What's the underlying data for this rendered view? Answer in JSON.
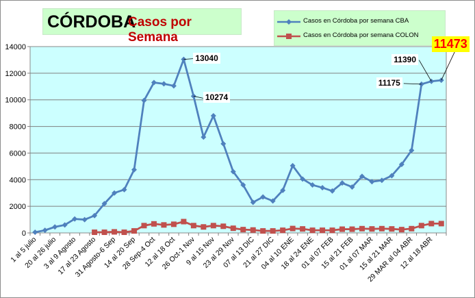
{
  "chart_data": {
    "type": "line",
    "title": "CÓRDOBA",
    "subtitle": "Casos por Semana",
    "ylim": [
      0,
      14000
    ],
    "yticks": [
      0,
      2000,
      4000,
      6000,
      8000,
      10000,
      12000,
      14000
    ],
    "categories": [
      "1 al 5 julio",
      "",
      "20 al 26 julio",
      "",
      "3 al 9 Agosto",
      "",
      "17 al 23 Agosto",
      "",
      "31 Agosto-6 Sep",
      "",
      "14 al 20 Sep",
      "",
      "28 Sep-4 Oct",
      "",
      "12 al 18 Oct",
      "",
      "26 Oct-1 Nov",
      "",
      "9 al 15 Nov",
      "",
      "23 al 29 Nov",
      "",
      "07 al 13 DIC",
      "",
      "21 al 27 DIC",
      "",
      "04 al 10 ENE",
      "",
      "18 al 24 ENE",
      "",
      "01 al 07 FEB",
      "",
      "15 al 21 FEB",
      "",
      "01 al 07 MAR",
      "",
      "15 al 21 MAR",
      "",
      "29 MAR al 04 ABR",
      "",
      "12 al 18 ABR",
      ""
    ],
    "series": [
      {
        "name": "Casos en Córdoba por semana  CBA",
        "color": "#4f81bd",
        "marker": "diamond",
        "values": [
          50,
          200,
          450,
          600,
          1050,
          1000,
          1300,
          2200,
          3000,
          3250,
          4750,
          9950,
          11300,
          11200,
          11050,
          13040,
          10274,
          7200,
          8800,
          6700,
          4600,
          3600,
          2300,
          2700,
          2400,
          3200,
          5050,
          4050,
          3600,
          3400,
          3150,
          3750,
          3450,
          4250,
          3850,
          3950,
          4300,
          5150,
          6200,
          11175,
          11390,
          11473
        ]
      },
      {
        "name": "Casos en Córdoba por semana  COLON",
        "color": "#c0504d",
        "marker": "square",
        "values": [
          null,
          null,
          null,
          null,
          null,
          null,
          50,
          50,
          80,
          50,
          150,
          550,
          680,
          600,
          650,
          850,
          550,
          450,
          550,
          500,
          350,
          250,
          220,
          150,
          150,
          200,
          330,
          300,
          200,
          200,
          200,
          280,
          280,
          320,
          300,
          320,
          300,
          250,
          320,
          550,
          700,
          700
        ]
      }
    ],
    "annotations": [
      {
        "label": "13040",
        "index": 15
      },
      {
        "label": "10274",
        "index": 16
      },
      {
        "label": "11175",
        "index": 39
      },
      {
        "label": "11390",
        "index": 40
      },
      {
        "label": "11473",
        "index": 41,
        "highlight": true
      }
    ]
  }
}
